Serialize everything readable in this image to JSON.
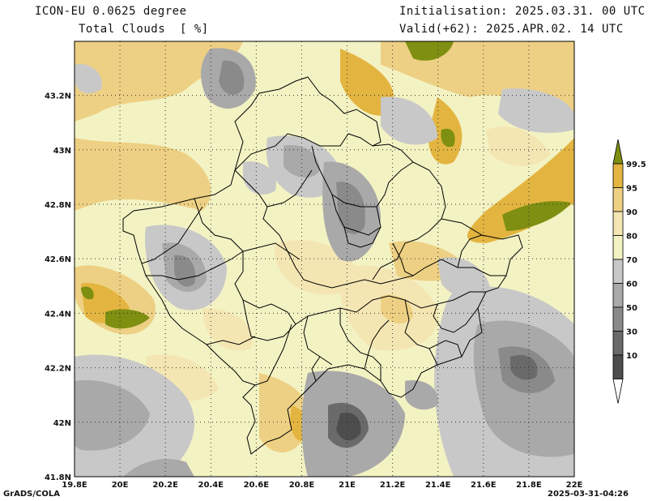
{
  "header": {
    "model": "ICON-EU 0.0625 degree",
    "variable": "Total Clouds  [ %]",
    "init": "Initialisation: 2025.03.31. 00 UTC",
    "valid": "Valid(+62): 2025.APR.02. 14 UTC"
  },
  "axes": {
    "x_ticks": [
      "19.8E",
      "20E",
      "20.2E",
      "20.4E",
      "20.6E",
      "20.8E",
      "21E",
      "21.2E",
      "21.4E",
      "21.6E",
      "21.8E",
      "22E"
    ],
    "y_ticks": [
      "41.8N",
      "42N",
      "42.2N",
      "42.4N",
      "42.6N",
      "42.8N",
      "43N",
      "43.2N"
    ]
  },
  "colorbar": {
    "labels": [
      "99.5",
      "95",
      "90",
      "80",
      "70",
      "60",
      "50",
      "30",
      "10"
    ],
    "colors": [
      "#7e8f12",
      "#e3b540",
      "#edd083",
      "#f4e6b3",
      "#f3f2c3",
      "#c8c8c8",
      "#a9a9a9",
      "#8a8a8a",
      "#6a6a6a",
      "#4d4d4d",
      "#ffffff"
    ]
  },
  "footer": {
    "left": "GrADS/COLA",
    "right": "2025-03-31-04:26"
  }
}
